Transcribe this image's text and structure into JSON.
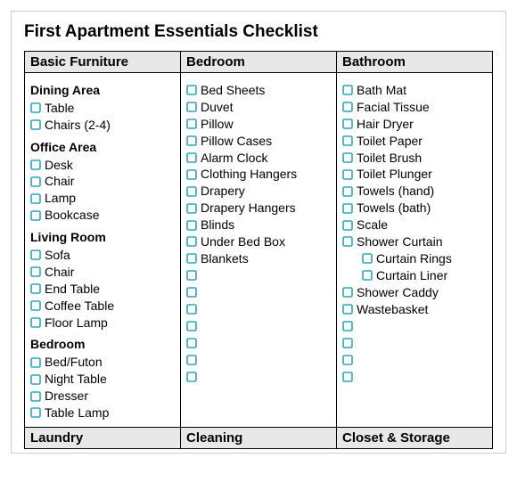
{
  "title": "First Apartment Essentials Checklist",
  "checkbox_stroke": "#2aa6b9",
  "checkbox_size": 12,
  "columns": [
    {
      "header": "Basic Furniture",
      "groups": [
        {
          "heading": "Dining Area",
          "items": [
            {
              "label": "Table"
            },
            {
              "label": "Chairs (2-4)"
            }
          ]
        },
        {
          "heading": "Office Area",
          "items": [
            {
              "label": "Desk"
            },
            {
              "label": "Chair"
            },
            {
              "label": "Lamp"
            },
            {
              "label": "Bookcase"
            }
          ]
        },
        {
          "heading": "Living Room",
          "items": [
            {
              "label": "Sofa"
            },
            {
              "label": "Chair"
            },
            {
              "label": "End Table"
            },
            {
              "label": "Coffee Table"
            },
            {
              "label": "Floor Lamp"
            }
          ]
        },
        {
          "heading": "Bedroom",
          "items": [
            {
              "label": "Bed/Futon"
            },
            {
              "label": "Night Table"
            },
            {
              "label": "Dresser"
            },
            {
              "label": "Table Lamp"
            }
          ]
        }
      ]
    },
    {
      "header": "Bedroom",
      "groups": [
        {
          "heading": null,
          "items": [
            {
              "label": "Bed Sheets"
            },
            {
              "label": "Duvet"
            },
            {
              "label": "Pillow"
            },
            {
              "label": "Pillow Cases"
            },
            {
              "label": "Alarm Clock"
            },
            {
              "label": "Clothing Hangers"
            },
            {
              "label": "Drapery"
            },
            {
              "label": "Drapery Hangers"
            },
            {
              "label": "Blinds"
            },
            {
              "label": "Under Bed Box"
            },
            {
              "label": "Blankets"
            },
            {
              "label": ""
            },
            {
              "label": ""
            },
            {
              "label": ""
            },
            {
              "label": ""
            },
            {
              "label": ""
            },
            {
              "label": ""
            },
            {
              "label": ""
            }
          ]
        }
      ]
    },
    {
      "header": "Bathroom",
      "groups": [
        {
          "heading": null,
          "items": [
            {
              "label": "Bath Mat"
            },
            {
              "label": "Facial Tissue"
            },
            {
              "label": "Hair Dryer"
            },
            {
              "label": "Toilet Paper"
            },
            {
              "label": "Toilet Brush"
            },
            {
              "label": "Toilet Plunger"
            },
            {
              "label": "Towels (hand)"
            },
            {
              "label": "Towels (bath)"
            },
            {
              "label": "Scale"
            },
            {
              "label": "Shower Curtain"
            },
            {
              "label": "Curtain Rings",
              "indent": true
            },
            {
              "label": "Curtain Liner",
              "indent": true
            },
            {
              "label": "Shower Caddy"
            },
            {
              "label": "Wastebasket"
            },
            {
              "label": ""
            },
            {
              "label": ""
            },
            {
              "label": ""
            },
            {
              "label": ""
            }
          ]
        }
      ]
    }
  ],
  "footer_headers": [
    "Laundry",
    "Cleaning",
    "Closet & Storage"
  ]
}
